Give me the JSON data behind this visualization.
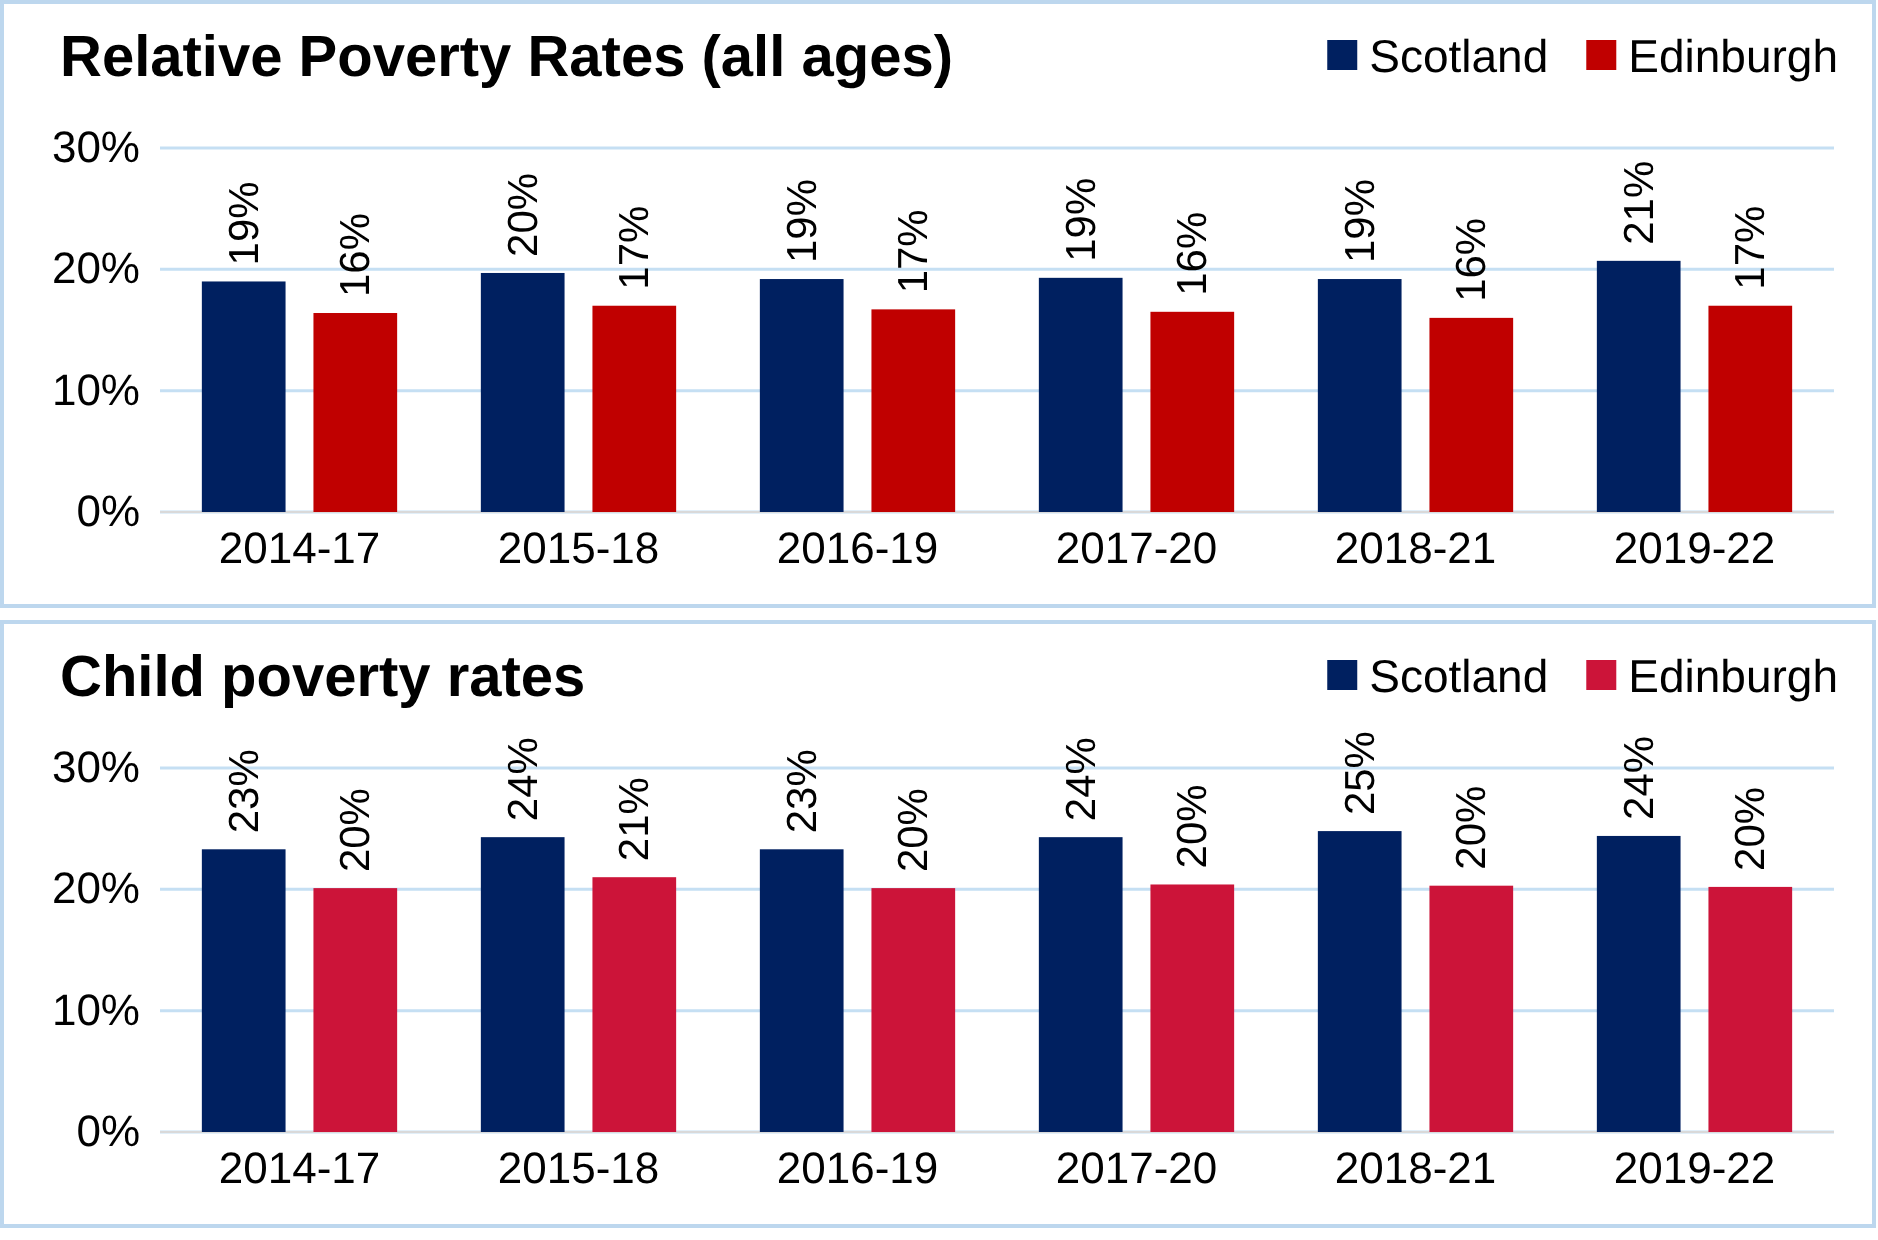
{
  "chart_data": [
    {
      "type": "bar",
      "title": "Relative Poverty Rates (all ages)",
      "categories": [
        "2014-17",
        "2015-18",
        "2016-19",
        "2017-20",
        "2018-21",
        "2019-22"
      ],
      "series": [
        {
          "name": "Scotland",
          "color": "#002060",
          "values": [
            19.0,
            19.7,
            19.2,
            19.3,
            19.2,
            20.7
          ],
          "value_labels": [
            "19%",
            "20%",
            "19%",
            "19%",
            "19%",
            "21%"
          ]
        },
        {
          "name": "Edinburgh",
          "color": "#c00000",
          "values": [
            16.4,
            17.0,
            16.7,
            16.5,
            16.0,
            17.0
          ],
          "value_labels": [
            "16%",
            "17%",
            "17%",
            "16%",
            "16%",
            "17%"
          ]
        }
      ],
      "ylim": [
        0,
        30
      ],
      "yticks": [
        {
          "value": 0,
          "label": "0%"
        },
        {
          "value": 10,
          "label": "10%"
        },
        {
          "value": 20,
          "label": "20%"
        },
        {
          "value": 30,
          "label": "30%"
        }
      ],
      "grid": "y",
      "legend": "top right"
    },
    {
      "type": "bar",
      "title": "Child poverty rates",
      "categories": [
        "2014-17",
        "2015-18",
        "2016-19",
        "2017-20",
        "2018-21",
        "2019-22"
      ],
      "series": [
        {
          "name": "Scotland",
          "color": "#002060",
          "values": [
            23.3,
            24.3,
            23.3,
            24.3,
            24.8,
            24.4
          ],
          "value_labels": [
            "23%",
            "24%",
            "23%",
            "24%",
            "25%",
            "24%"
          ]
        },
        {
          "name": "Edinburgh",
          "color": "#cc1439",
          "values": [
            20.1,
            21.0,
            20.1,
            20.4,
            20.3,
            20.2
          ],
          "value_labels": [
            "20%",
            "21%",
            "20%",
            "20%",
            "20%",
            "20%"
          ]
        }
      ],
      "ylim": [
        0,
        30
      ],
      "yticks": [
        {
          "value": 0,
          "label": "0%"
        },
        {
          "value": 10,
          "label": "10%"
        },
        {
          "value": 20,
          "label": "20%"
        },
        {
          "value": 30,
          "label": "30%"
        }
      ],
      "grid": "y",
      "legend": "top right"
    }
  ]
}
